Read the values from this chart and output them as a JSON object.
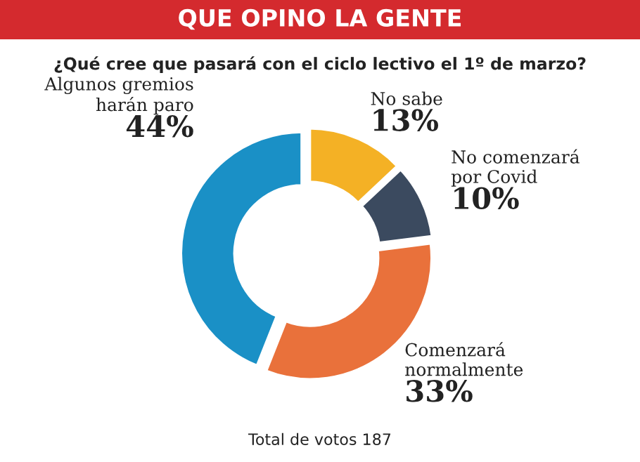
{
  "chart_data": {
    "type": "donut",
    "title": "QUE OPINO LA GENTE",
    "subtitle": "¿Qué cree que pasará con el ciclo lectivo el 1º de marzo?",
    "categories": [
      "No sabe",
      "No comenzará\npor Covid",
      "Comenzará\nnormalmente",
      "Algunos gremios\nharán paro"
    ],
    "values": [
      13,
      10,
      33,
      44
    ],
    "colors": [
      "#f4b125",
      "#3b4a5f",
      "#e9713b",
      "#1a90c6"
    ],
    "value_labels": [
      "13%",
      "10%",
      "33%",
      "44%"
    ],
    "annotations": [
      "Total de votos 187"
    ],
    "legend": false
  }
}
